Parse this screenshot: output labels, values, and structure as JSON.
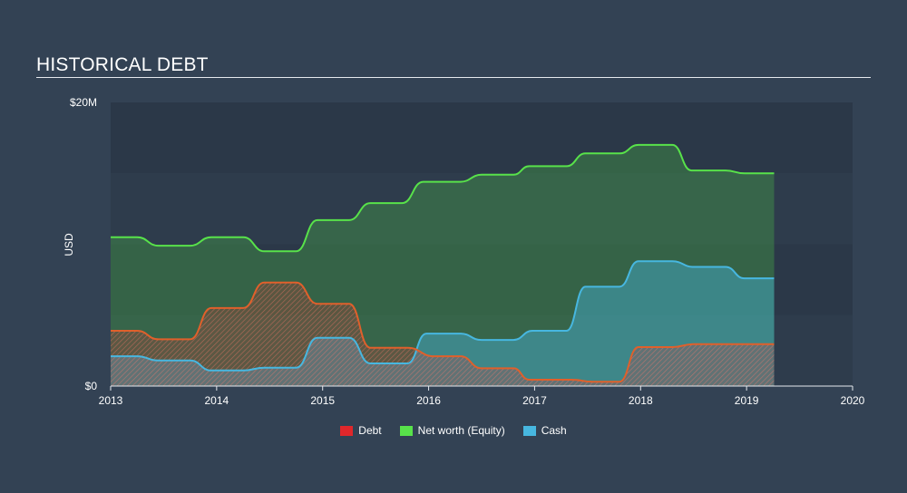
{
  "page": {
    "title": "HISTORICAL DEBT"
  },
  "chart_data": {
    "type": "area",
    "title": "HISTORICAL DEBT",
    "ylabel": "USD",
    "xlabel": "",
    "ylim": [
      0,
      20000000
    ],
    "xlim": [
      2013,
      2020
    ],
    "y_tick_labels": [
      {
        "value": 20000000,
        "label": "$20M"
      },
      {
        "value": 0,
        "label": "$0"
      }
    ],
    "x_tick_labels": [
      "2013",
      "2014",
      "2015",
      "2016",
      "2017",
      "2018",
      "2019",
      "2020"
    ],
    "legend_position": "bottom-center",
    "colors": {
      "debt": "#e0272b",
      "equity": "#58e24a",
      "cash": "#47b7e0",
      "background": "#334254"
    },
    "series": [
      {
        "name": "Debt",
        "key": "debt",
        "points": [
          [
            2013.0,
            3.9
          ],
          [
            2013.25,
            3.9
          ],
          [
            2013.45,
            3.3
          ],
          [
            2013.75,
            3.3
          ],
          [
            2013.95,
            5.5
          ],
          [
            2014.25,
            5.5
          ],
          [
            2014.45,
            7.3
          ],
          [
            2014.75,
            7.3
          ],
          [
            2014.95,
            5.8
          ],
          [
            2015.25,
            5.8
          ],
          [
            2015.45,
            2.7
          ],
          [
            2015.8,
            2.7
          ],
          [
            2016.05,
            2.1
          ],
          [
            2016.3,
            2.1
          ],
          [
            2016.5,
            1.25
          ],
          [
            2016.8,
            1.25
          ],
          [
            2016.95,
            0.45
          ],
          [
            2017.35,
            0.45
          ],
          [
            2017.55,
            0.3
          ],
          [
            2017.8,
            0.3
          ],
          [
            2017.98,
            2.75
          ],
          [
            2018.3,
            2.75
          ],
          [
            2018.5,
            2.95
          ],
          [
            2018.8,
            2.95
          ],
          [
            2019.26,
            2.95
          ]
        ]
      },
      {
        "name": "Net worth (Equity)",
        "key": "equity",
        "points": [
          [
            2013.0,
            10.5
          ],
          [
            2013.25,
            10.5
          ],
          [
            2013.45,
            9.9
          ],
          [
            2013.75,
            9.9
          ],
          [
            2013.95,
            10.5
          ],
          [
            2014.25,
            10.5
          ],
          [
            2014.45,
            9.5
          ],
          [
            2014.75,
            9.5
          ],
          [
            2014.95,
            11.7
          ],
          [
            2015.25,
            11.7
          ],
          [
            2015.45,
            12.9
          ],
          [
            2015.75,
            12.9
          ],
          [
            2015.95,
            14.4
          ],
          [
            2016.3,
            14.4
          ],
          [
            2016.5,
            14.9
          ],
          [
            2016.8,
            14.9
          ],
          [
            2016.95,
            15.5
          ],
          [
            2017.3,
            15.5
          ],
          [
            2017.48,
            16.4
          ],
          [
            2017.8,
            16.4
          ],
          [
            2017.98,
            17.0
          ],
          [
            2018.3,
            17.0
          ],
          [
            2018.48,
            15.2
          ],
          [
            2018.8,
            15.2
          ],
          [
            2018.98,
            15.0
          ],
          [
            2019.26,
            15.0
          ]
        ]
      },
      {
        "name": "Cash",
        "key": "cash",
        "points": [
          [
            2013.0,
            2.1
          ],
          [
            2013.25,
            2.1
          ],
          [
            2013.45,
            1.8
          ],
          [
            2013.75,
            1.8
          ],
          [
            2013.95,
            1.1
          ],
          [
            2014.25,
            1.1
          ],
          [
            2014.45,
            1.3
          ],
          [
            2014.75,
            1.3
          ],
          [
            2014.95,
            3.4
          ],
          [
            2015.25,
            3.4
          ],
          [
            2015.45,
            1.6
          ],
          [
            2015.8,
            1.6
          ],
          [
            2015.98,
            3.7
          ],
          [
            2016.3,
            3.7
          ],
          [
            2016.5,
            3.25
          ],
          [
            2016.8,
            3.25
          ],
          [
            2016.98,
            3.9
          ],
          [
            2017.3,
            3.9
          ],
          [
            2017.48,
            7.0
          ],
          [
            2017.8,
            7.0
          ],
          [
            2017.98,
            8.8
          ],
          [
            2018.3,
            8.8
          ],
          [
            2018.5,
            8.4
          ],
          [
            2018.8,
            8.4
          ],
          [
            2018.98,
            7.6
          ],
          [
            2019.26,
            7.6
          ]
        ]
      }
    ],
    "units": "USD millions"
  }
}
